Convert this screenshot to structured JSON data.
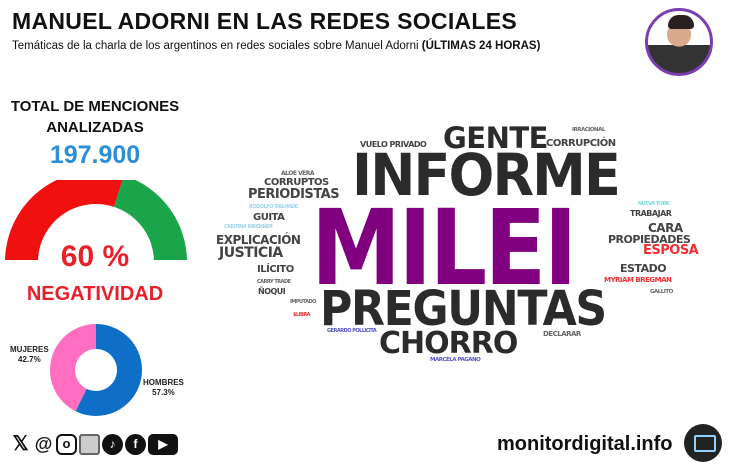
{
  "header": {
    "title": "MANUEL ADORNI EN LAS REDES SOCIALES",
    "subtitle": "Temáticas de la charla de los argentinos en redes sociales sobre Manuel Adorni",
    "subtitle_bold": "(ÚLTIMAS 24 HORAS)"
  },
  "stats": {
    "total_label_1": "TOTAL DE MENCIONES",
    "total_label_2": "ANALIZADAS",
    "total_value": "197.900",
    "negativity_pct": "60 %",
    "negativity_value": 60,
    "negativity_label": "NEGATIVIDAD",
    "colors": {
      "negative": "#f01010",
      "positive": "#1aa54a"
    }
  },
  "gender": {
    "women_label": "MUJERES",
    "women_pct": "42.7%",
    "women_value": 42.7,
    "men_label": "HOMBRES",
    "men_pct": "57.3%",
    "men_value": 57.3,
    "colors": {
      "women": "#ff6ec0",
      "men": "#0f6fc6"
    }
  },
  "wordcloud": {
    "words": [
      "GENTE",
      "IRRACIONAL",
      "VUELO PRIVADO",
      "CORRUPCIÓN",
      "INFORME",
      "ALOE VERA",
      "CORRUPTOS",
      "PERIODISTAS",
      "RODOLFO TAILHADE",
      "MILEI",
      "NUEVA YORK",
      "TRABAJAR",
      "GUITA",
      "CRISTINA KIRCHNER",
      "CARA",
      "EXPLICACIÓN",
      "PROPIEDADES",
      "JUSTICIA",
      "ESPOSA",
      "ESTADO",
      "ILÍCITO",
      "MYRIAM BREGMAN",
      "CARRY TRADE",
      "ÑOQUI",
      "GALLITO",
      "IMPUTADO",
      "PREGUNTAS",
      "$LIBRA",
      "GERARDO POLLICITA",
      "DECLARAR",
      "CHORRO",
      "MARCELA PAGANO"
    ]
  },
  "footer": {
    "brand": "monitordigital.info",
    "social_icons": [
      "x-icon",
      "threads-icon",
      "instagram-icon",
      "news-icon",
      "tiktok-icon",
      "facebook-icon",
      "youtube-icon"
    ]
  }
}
